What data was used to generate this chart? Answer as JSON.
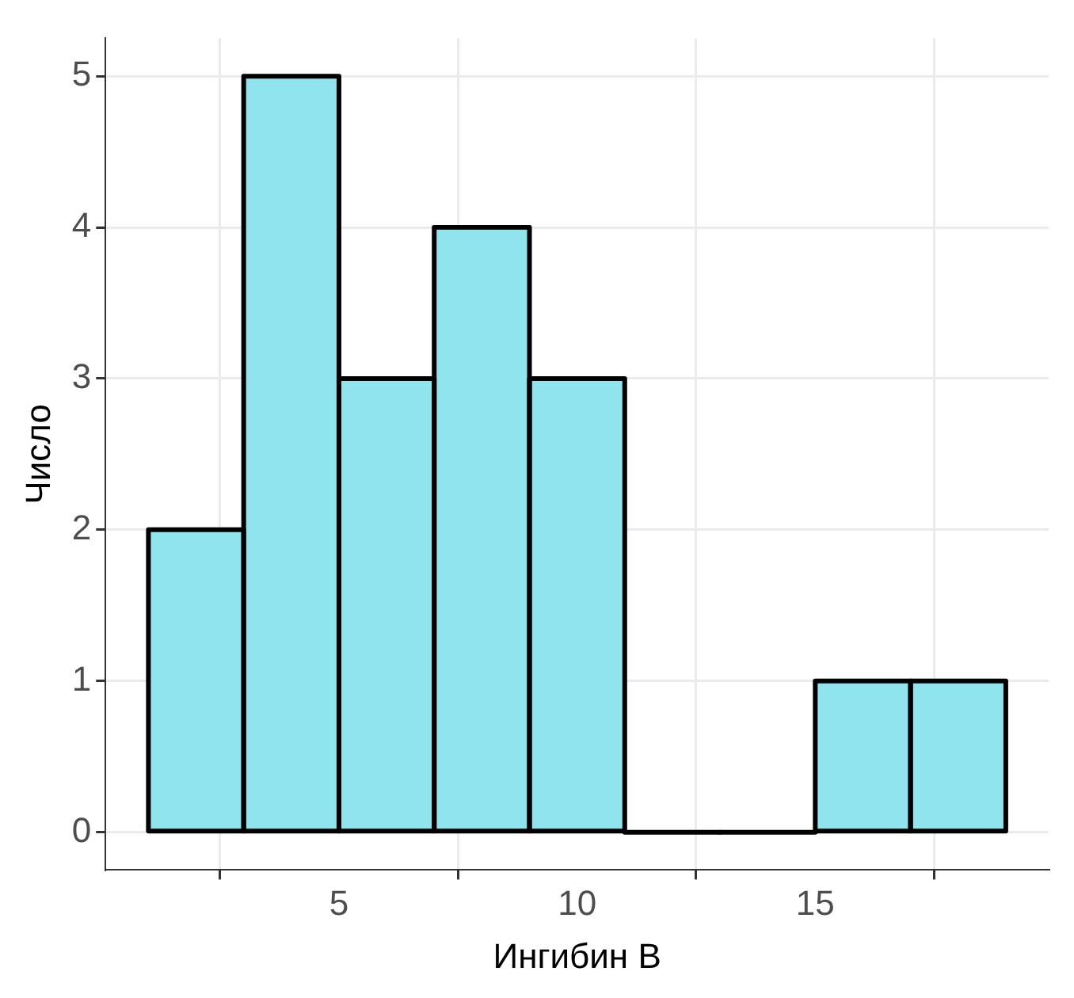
{
  "chart_data": {
    "type": "histogram",
    "xlabel": "Ингибин B",
    "ylabel": "Число",
    "bins": [
      1,
      3,
      5,
      7,
      9,
      11,
      13,
      15,
      17,
      19
    ],
    "values": [
      2,
      5,
      3,
      4,
      3,
      0,
      0,
      1,
      1
    ],
    "color": "#90e4ee",
    "xlim": [
      0.1,
      19.9
    ],
    "xticks": [
      5,
      10,
      15
    ],
    "ylim": [
      -0.25,
      5.25
    ],
    "yticks": [
      0,
      1,
      2,
      3,
      4,
      5
    ],
    "grid": true
  }
}
